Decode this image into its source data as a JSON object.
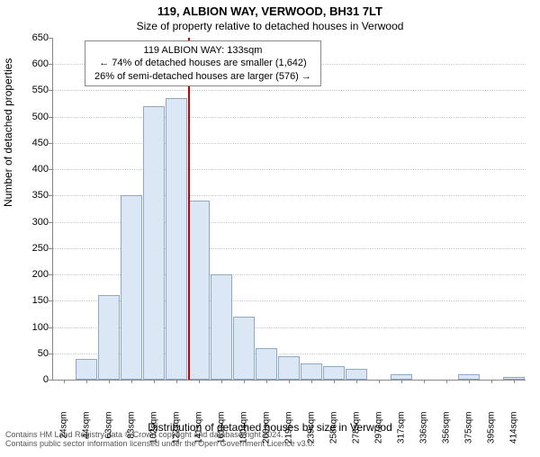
{
  "chart": {
    "type": "histogram",
    "title_main": "119, ALBION WAY, VERWOOD, BH31 7LT",
    "title_sub": "Size of property relative to detached houses in Verwood",
    "title_fontsize": 13,
    "subtitle_fontsize": 12,
    "y_axis_label": "Number of detached properties",
    "x_axis_label": "Distribution of detached houses by size in Verwood",
    "background_color": "#ffffff",
    "bar_fill": "#dbe7f5",
    "bar_stroke": "#8fa8c8",
    "grid_color": "#cccccc",
    "axis_color": "#888888",
    "marker_color": "#cc0000",
    "ylim": [
      0,
      650
    ],
    "ytick_step": 50,
    "x_categories": [
      "24sqm",
      "44sqm",
      "63sqm",
      "83sqm",
      "102sqm",
      "122sqm",
      "141sqm",
      "161sqm",
      "180sqm",
      "200sqm",
      "219sqm",
      "239sqm",
      "258sqm",
      "278sqm",
      "297sqm",
      "317sqm",
      "336sqm",
      "356sqm",
      "375sqm",
      "395sqm",
      "414sqm"
    ],
    "values": [
      0,
      40,
      160,
      350,
      520,
      535,
      340,
      200,
      120,
      60,
      45,
      30,
      25,
      20,
      0,
      10,
      0,
      0,
      10,
      0,
      5
    ],
    "marker_index": 6,
    "annotation_box": {
      "line1": "119 ALBION WAY: 133sqm",
      "line2": "← 74% of detached houses are smaller (1,642)",
      "line3": "26% of semi-detached houses are larger (576) →",
      "border_color": "#888888",
      "bg_color": "#ffffff",
      "fontsize": 11
    },
    "footer_line1": "Contains HM Land Registry data © Crown copyright and database right 2024.",
    "footer_line2": "Contains public sector information licensed under the Open Government Licence v3.0."
  }
}
